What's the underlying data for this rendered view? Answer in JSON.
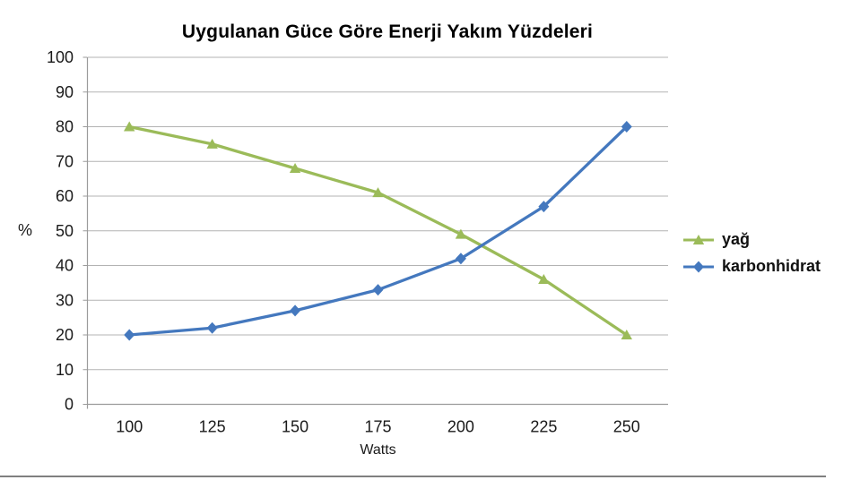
{
  "chart_data": {
    "type": "line",
    "title": "Uygulanan Güce Göre Enerji Yakım Yüzdeleri",
    "xlabel": "Watts",
    "ylabel": "%",
    "categories": [
      "100",
      "125",
      "150",
      "175",
      "200",
      "225",
      "250"
    ],
    "series": [
      {
        "name": "yağ",
        "marker": "triangle",
        "color": "#9BBB59",
        "values": [
          80,
          75,
          68,
          61,
          49,
          36,
          20
        ]
      },
      {
        "name": "karbonhidrat",
        "marker": "diamond",
        "color": "#4478BE",
        "values": [
          20,
          22,
          27,
          33,
          42,
          57,
          80
        ]
      }
    ],
    "ylim": [
      0,
      100
    ],
    "y_tick_step": 10,
    "grid": true,
    "legend_position": "right"
  },
  "colors": {
    "gridline": "#b3b3b3",
    "axis": "#9b9b9b",
    "tick_text": "#1a1a1a",
    "separator": "#7f7f7f"
  }
}
